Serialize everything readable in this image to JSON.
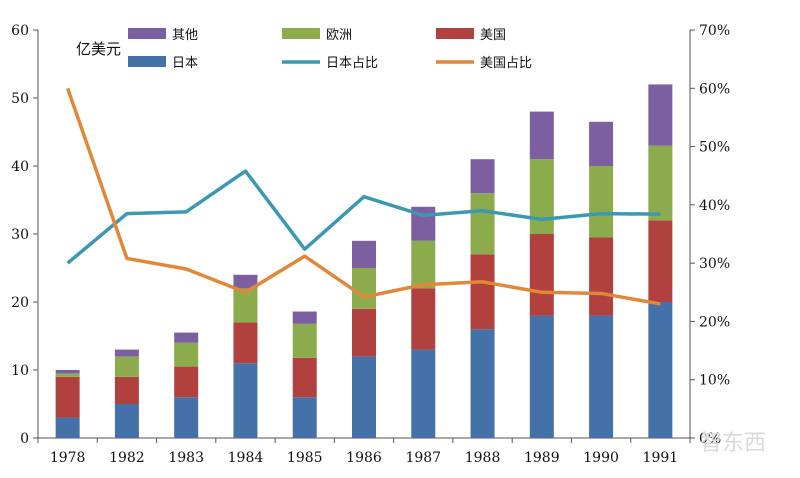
{
  "chart_data": {
    "type": "bar",
    "stacked": true,
    "categories": [
      "1978",
      "1982",
      "1983",
      "1984",
      "1985",
      "1986",
      "1987",
      "1988",
      "1989",
      "1990",
      "1991"
    ],
    "ylabel": "亿美元",
    "ylim": [
      0,
      60
    ],
    "y_ticks": [
      0,
      10,
      20,
      30,
      40,
      50,
      60
    ],
    "y2lim": [
      0,
      0.7
    ],
    "y2_ticks": [
      "0%",
      "10%",
      "20%",
      "30%",
      "40%",
      "50%",
      "60%",
      "70%"
    ],
    "grid": false,
    "legend_position": "top",
    "series": [
      {
        "name": "日本",
        "kind": "bar",
        "color": "#4472a8",
        "values": [
          3,
          5,
          6,
          11,
          6,
          12,
          13,
          16,
          18,
          18,
          20
        ]
      },
      {
        "name": "美国",
        "kind": "bar",
        "color": "#b0413e",
        "values": [
          6,
          4,
          4.5,
          6,
          5.8,
          7,
          9,
          11,
          12,
          11.5,
          12
        ]
      },
      {
        "name": "欧洲",
        "kind": "bar",
        "color": "#8cab4c",
        "values": [
          0.5,
          3,
          3.5,
          5,
          5,
          6,
          7,
          9,
          11,
          10.5,
          11
        ]
      },
      {
        "name": "其他",
        "kind": "bar",
        "color": "#7b5fa0",
        "values": [
          0.5,
          1,
          1.5,
          2,
          1.8,
          4,
          5,
          5,
          7,
          6.5,
          9
        ]
      },
      {
        "name": "日本占比",
        "kind": "line",
        "axis": "right",
        "color": "#3c98b2",
        "values": [
          0.3,
          0.385,
          0.388,
          0.458,
          0.324,
          0.414,
          0.382,
          0.39,
          0.375,
          0.385,
          0.384
        ]
      },
      {
        "name": "美国占比",
        "kind": "line",
        "axis": "right",
        "color": "#e0873a",
        "values": [
          0.6,
          0.308,
          0.29,
          0.25,
          0.312,
          0.242,
          0.263,
          0.268,
          0.25,
          0.248,
          0.23
        ]
      }
    ],
    "legend_order": [
      "其他",
      "欧洲",
      "美国",
      "日本",
      "日本占比",
      "美国占比"
    ]
  },
  "watermark": "智东西"
}
